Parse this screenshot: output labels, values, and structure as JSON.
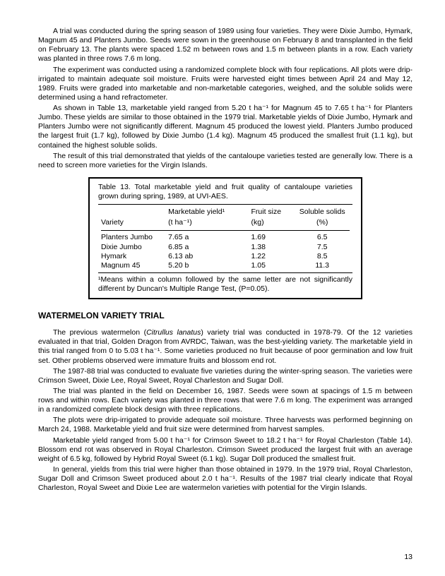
{
  "paragraphs": {
    "p1": "A trial was conducted during the spring season of 1989 using four varieties. They were Dixie Jumbo, Hymark, Magnum 45 and Planters Jumbo. Seeds were sown in the greenhouse on February 8 and transplanted in the field on February 13. The plants were spaced 1.52 m between rows and 1.5 m between plants in a row. Each variety was planted in three rows 7.6 m long.",
    "p2": "The experiment was conducted using a randomized complete block with four replications. All plots were drip-irrigated to maintain adequate soil moisture. Fruits were harvested eight times between April 24 and May 12, 1989. Fruits were graded into marketable and non-marketable categories, weighed, and the soluble solids were determined using a hand refractometer.",
    "p3": "As shown in Table 13, marketable yield ranged from 5.20 t ha⁻¹ for Magnum 45 to 7.65 t ha⁻¹ for Planters Jumbo. These yields are similar to those obtained in the 1979 trial. Marketable yields of Dixie Jumbo, Hymark and Planters Jumbo were not significantly different. Magnum 45 produced the lowest yield. Planters Jumbo produced the largest fruit (1.7 kg), followed by Dixie Jumbo (1.4 kg). Magnum 45 produced the smallest fruit (1.1 kg), but contained the highest soluble solids.",
    "p4": "The result of this trial demonstrated that yields of the cantaloupe varieties tested are generally low. There is a need to screen more varieties for the Virgin Islands."
  },
  "table13": {
    "caption": "Table 13. Total marketable yield and fruit quality of cantaloupe varieties grown during spring, 1989, at UVI-AES.",
    "headers": {
      "c1": "Variety",
      "c2a": "Marketable yield¹",
      "c2b": "(t ha⁻¹)",
      "c3a": "Fruit size",
      "c3b": "(kg)",
      "c4a": "Soluble solids",
      "c4b": "(%)"
    },
    "rows": [
      {
        "c1": "Planters Jumbo",
        "c2": "7.65 a",
        "c3": "1.69",
        "c4": "6.5"
      },
      {
        "c1": "Dixie Jumbo",
        "c2": "6.85 a",
        "c3": "1.38",
        "c4": "7.5"
      },
      {
        "c1": "Hymark",
        "c2": "6.13 ab",
        "c3": "1.22",
        "c4": "8.5"
      },
      {
        "c1": "Magnum 45",
        "c2": "5.20 b",
        "c3": "1.05",
        "c4": "11.3"
      }
    ],
    "note": "¹Means within a column followed by the same letter are not significantly different by Duncan's Multiple Range Test, (P=0.05)."
  },
  "section2": {
    "heading": "WATERMELON VARIETY TRIAL",
    "p1_a": "The previous watermelon (",
    "p1_i": "Citrullus lanatus",
    "p1_b": ") variety trial was conducted in 1978-79. Of the 12 varieties evaluated in that trial, Golden Dragon from AVRDC, Taiwan, was the best-yielding variety. The marketable yield in this trial ranged from 0 to 5.03 t ha⁻¹. Some varieties produced no fruit because of poor germination and low fruit set. Other problems observed were immature fruits and blossom end rot.",
    "p2": "The 1987-88 trial was conducted to evaluate five varieties during the winter-spring season. The varieties were Crimson Sweet, Dixie Lee, Royal Sweet, Royal Charleston and Sugar Doll.",
    "p3": "The trial was planted in the field on December 16, 1987. Seeds were sown at spacings of 1.5 m between rows and within rows. Each variety was planted in three rows that were 7.6 m long. The experiment was arranged in a randomized complete block design with three replications.",
    "p4": "The plots were drip-irrigated to provide adequate soil moisture. Three harvests was performed beginning on March 24, 1988. Marketable yield and fruit size were determined from harvest samples.",
    "p5": "Marketable yield ranged from 5.00 t ha⁻¹ for Crimson Sweet to 18.2 t ha⁻¹ for Royal Charleston (Table 14). Blossom end rot was observed in Royal Charleston. Crimson Sweet produced the largest fruit with an average weight of 6.5 kg, followed by Hybrid Royal Sweet (6.1 kg). Sugar Doll produced the smallest fruit.",
    "p6": "In general, yields from this trial were higher than those obtained in 1979. In the 1979 trial, Royal Charleston, Sugar Doll and Crimson Sweet produced about 2.0 t ha⁻¹. Results of the 1987 trial clearly indicate that Royal Charleston, Royal Sweet and Dixie Lee are watermelon varieties with potential for the Virgin Islands."
  },
  "pagenum": "13"
}
